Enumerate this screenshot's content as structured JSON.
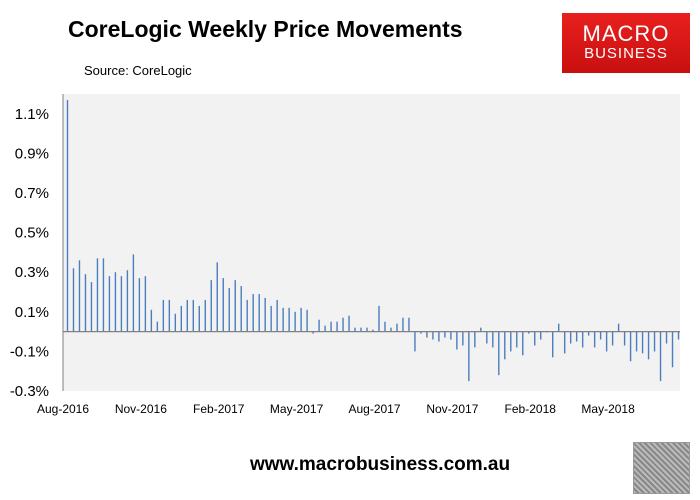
{
  "header": {
    "title": "CoreLogic Weekly Price Movements",
    "source": "Source: CoreLogic"
  },
  "logo": {
    "line1": "MACRO",
    "line2": "BUSINESS"
  },
  "footer": {
    "url": "www.macrobusiness.com.au"
  },
  "colors": {
    "bar": "#4a7ebf",
    "plot_bg": "#f2f2f2",
    "logo": "#e01b1a"
  },
  "chart_data": {
    "type": "bar",
    "title": "CoreLogic Weekly Price Movements",
    "subtitle": "Source: CoreLogic",
    "xlabel": "",
    "ylabel": "",
    "ylim": [
      -0.3,
      1.2
    ],
    "yticks": [
      -0.3,
      -0.1,
      0.1,
      0.3,
      0.5,
      0.7,
      0.9,
      1.1
    ],
    "ytick_labels": [
      "-0.3%",
      "-0.1%",
      "0.1%",
      "0.3%",
      "0.5%",
      "0.7%",
      "0.9%",
      "1.1%"
    ],
    "xtick_labels": [
      "Aug-2016",
      "Nov-2016",
      "Feb-2017",
      "May-2017",
      "Aug-2017",
      "Nov-2017",
      "Feb-2018",
      "May-2018"
    ],
    "grid": false,
    "values": [
      1.17,
      0.32,
      0.36,
      0.29,
      0.25,
      0.37,
      0.37,
      0.28,
      0.3,
      0.28,
      0.31,
      0.39,
      0.27,
      0.28,
      0.11,
      0.05,
      0.16,
      0.16,
      0.09,
      0.13,
      0.16,
      0.16,
      0.13,
      0.16,
      0.26,
      0.35,
      0.27,
      0.22,
      0.26,
      0.23,
      0.16,
      0.19,
      0.19,
      0.17,
      0.13,
      0.16,
      0.12,
      0.12,
      0.1,
      0.12,
      0.11,
      -0.01,
      0.06,
      0.03,
      0.05,
      0.05,
      0.07,
      0.08,
      0.02,
      0.02,
      0.02,
      0.01,
      0.13,
      0.05,
      0.02,
      0.04,
      0.07,
      0.07,
      -0.1,
      -0.01,
      -0.03,
      -0.04,
      -0.05,
      -0.03,
      -0.04,
      -0.09,
      -0.07,
      -0.25,
      -0.08,
      0.02,
      -0.06,
      -0.08,
      -0.22,
      -0.14,
      -0.1,
      -0.08,
      -0.12,
      -0.01,
      -0.07,
      -0.04,
      0.0,
      -0.13,
      0.04,
      -0.11,
      -0.06,
      -0.05,
      -0.08,
      -0.02,
      -0.08,
      -0.04,
      -0.1,
      -0.07,
      0.04,
      -0.07,
      -0.15,
      -0.1,
      -0.11,
      -0.14,
      -0.1,
      -0.25,
      -0.06,
      -0.18,
      -0.04
    ]
  }
}
